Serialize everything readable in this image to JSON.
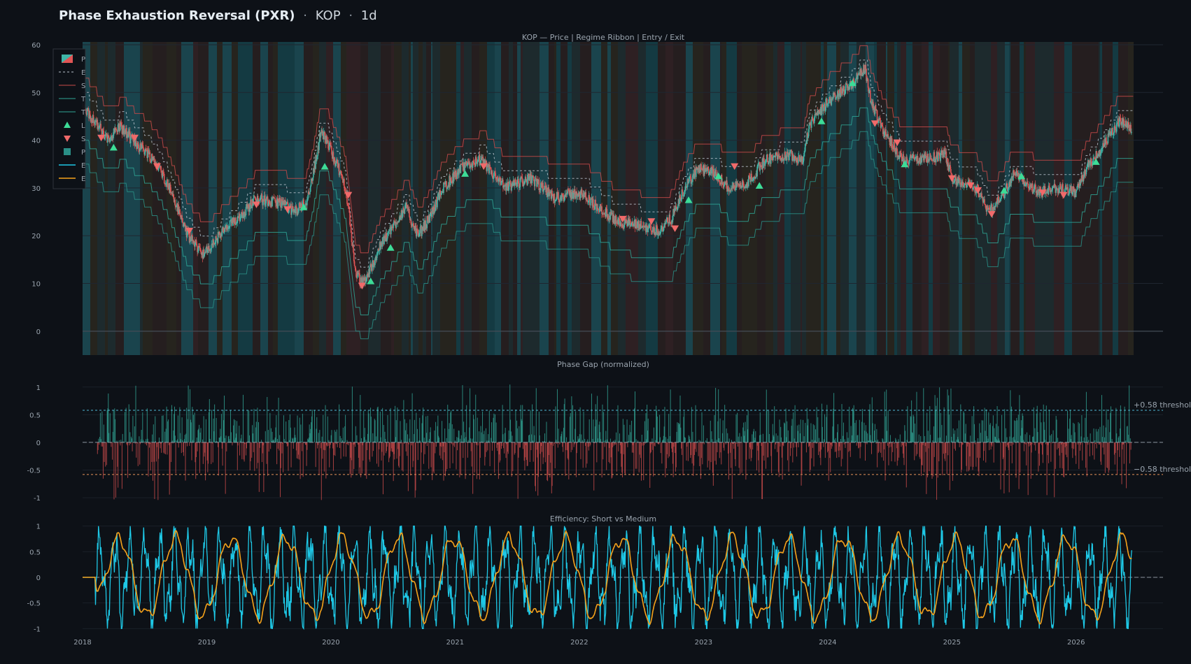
{
  "header": {
    "title": "Phase Exhaustion Reversal (PXR)",
    "separator": "·",
    "symbol": "KOP",
    "timeframe": "1d"
  },
  "colors": {
    "bg": "#0d1117",
    "up": "#3fb6a8",
    "down": "#e05555",
    "long": "#3ddc97",
    "short": "#f06a6a",
    "eff_short": "#1ec8e6",
    "eff_medium": "#f5a21b",
    "zero": "#8b949e"
  },
  "chart_data": [
    {
      "type": "candlestick",
      "title": "KOP — Price | Regime Ribbon | Entry / Exit",
      "x_ticks": [
        "2018",
        "2019",
        "2020",
        "2021",
        "2022",
        "2023",
        "2024",
        "2025",
        "2026"
      ],
      "xlim": [
        2018.0,
        2026.7
      ],
      "ylim": [
        -5,
        60
      ],
      "y_ticks": [
        0,
        10,
        20,
        30,
        40,
        50,
        60
      ],
      "legend": {
        "placement": "top-left",
        "entries": [
          "P",
          "E",
          "S",
          "T",
          "T",
          "L",
          "S",
          "P",
          "E",
          "E"
        ]
      },
      "price_path": [
        [
          2018.0,
          47
        ],
        [
          2018.1,
          44
        ],
        [
          2018.2,
          40
        ],
        [
          2018.3,
          43
        ],
        [
          2018.4,
          40
        ],
        [
          2018.5,
          38
        ],
        [
          2018.6,
          35
        ],
        [
          2018.7,
          30
        ],
        [
          2018.85,
          20
        ],
        [
          2018.98,
          16
        ],
        [
          2019.1,
          20
        ],
        [
          2019.3,
          25
        ],
        [
          2019.4,
          28
        ],
        [
          2019.5,
          27
        ],
        [
          2019.6,
          27
        ],
        [
          2019.7,
          25
        ],
        [
          2019.8,
          27
        ],
        [
          2019.85,
          32
        ],
        [
          2019.92,
          42
        ],
        [
          2020.0,
          38
        ],
        [
          2020.12,
          30
        ],
        [
          2020.2,
          12
        ],
        [
          2020.25,
          10
        ],
        [
          2020.3,
          12
        ],
        [
          2020.4,
          18
        ],
        [
          2020.6,
          26
        ],
        [
          2020.7,
          20
        ],
        [
          2020.8,
          24
        ],
        [
          2020.9,
          30
        ],
        [
          2021.05,
          34
        ],
        [
          2021.2,
          36
        ],
        [
          2021.4,
          30
        ],
        [
          2021.6,
          32
        ],
        [
          2021.8,
          28
        ],
        [
          2022.0,
          29
        ],
        [
          2022.15,
          26
        ],
        [
          2022.3,
          23
        ],
        [
          2022.5,
          22
        ],
        [
          2022.65,
          21
        ],
        [
          2022.75,
          24
        ],
        [
          2022.85,
          30
        ],
        [
          2022.95,
          34
        ],
        [
          2023.1,
          33
        ],
        [
          2023.2,
          30
        ],
        [
          2023.35,
          31
        ],
        [
          2023.5,
          36
        ],
        [
          2023.7,
          37
        ],
        [
          2023.8,
          36
        ],
        [
          2023.85,
          43
        ],
        [
          2024.0,
          48
        ],
        [
          2024.2,
          52
        ],
        [
          2024.3,
          55
        ],
        [
          2024.35,
          48
        ],
        [
          2024.45,
          42
        ],
        [
          2024.6,
          36
        ],
        [
          2024.8,
          36
        ],
        [
          2024.95,
          37
        ],
        [
          2025.0,
          32
        ],
        [
          2025.2,
          30
        ],
        [
          2025.3,
          25
        ],
        [
          2025.4,
          28
        ],
        [
          2025.5,
          33
        ],
        [
          2025.6,
          31
        ],
        [
          2025.7,
          29
        ],
        [
          2025.85,
          30
        ],
        [
          2026.0,
          29
        ],
        [
          2026.1,
          35
        ],
        [
          2026.2,
          38
        ],
        [
          2026.35,
          44
        ],
        [
          2026.45,
          42
        ]
      ],
      "entries_long": [
        [
          2018.25,
          38.5
        ],
        [
          2019.78,
          26
        ],
        [
          2019.95,
          34.5
        ],
        [
          2020.32,
          10.5
        ],
        [
          2020.48,
          17.5
        ],
        [
          2021.08,
          33
        ],
        [
          2022.88,
          27.5
        ],
        [
          2023.12,
          32.5
        ],
        [
          2023.45,
          30.5
        ],
        [
          2023.95,
          44
        ],
        [
          2024.2,
          52
        ],
        [
          2024.62,
          35
        ],
        [
          2025.42,
          29.5
        ],
        [
          2025.56,
          32.5
        ],
        [
          2026.16,
          35.5
        ]
      ],
      "entries_short": [
        [
          2018.15,
          40.5
        ],
        [
          2018.42,
          40.5
        ],
        [
          2018.6,
          34.5
        ],
        [
          2018.86,
          21
        ],
        [
          2019.4,
          26.5
        ],
        [
          2019.65,
          25.5
        ],
        [
          2020.14,
          28.5
        ],
        [
          2020.25,
          9.5
        ],
        [
          2021.23,
          34.5
        ],
        [
          2022.35,
          23.5
        ],
        [
          2022.58,
          23
        ],
        [
          2022.77,
          21.5
        ],
        [
          2023.25,
          34.5
        ],
        [
          2024.38,
          43.5
        ],
        [
          2024.56,
          39.5
        ],
        [
          2025.0,
          32
        ],
        [
          2025.15,
          30.5
        ],
        [
          2025.21,
          29.5
        ],
        [
          2025.32,
          24.5
        ],
        [
          2025.73,
          29
        ],
        [
          2025.9,
          28.5
        ]
      ]
    },
    {
      "type": "bar",
      "title": "Phase Gap  (normalized)",
      "ylim": [
        -1.1,
        1.3
      ],
      "y_ticks": [
        -1,
        -0.5,
        0,
        0.5,
        1
      ],
      "thresholds": [
        {
          "value": 0.58,
          "label": "+0.58 threshold"
        },
        {
          "value": -0.58,
          "label": "−0.58 threshold"
        }
      ]
    },
    {
      "type": "line",
      "title": "Efficiency: Short vs Medium",
      "ylim": [
        -1.05,
        1.05
      ],
      "y_ticks": [
        -1,
        -0.5,
        0,
        0.5,
        1
      ],
      "series": [
        {
          "key": "short",
          "color": "#1ec8e6"
        },
        {
          "key": "medium",
          "color": "#f5a21b"
        }
      ]
    }
  ]
}
